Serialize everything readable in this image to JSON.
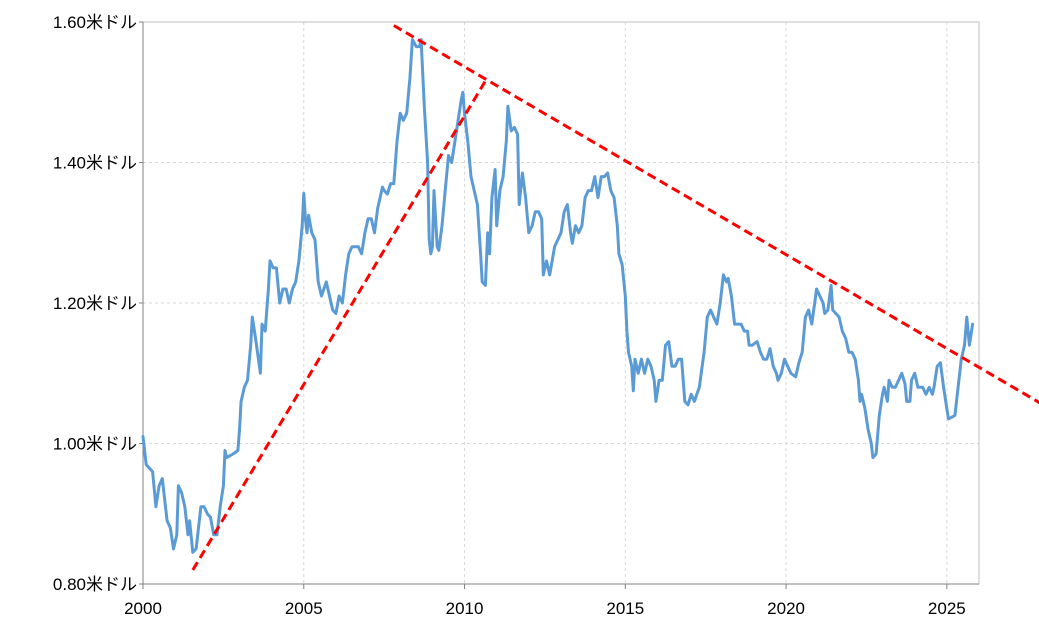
{
  "chart_data": {
    "type": "line",
    "title": "",
    "xlabel": "",
    "ylabel": "",
    "xlim": [
      2000,
      2026
    ],
    "ylim": [
      0.8,
      1.6
    ],
    "x_ticks": [
      2000,
      2005,
      2010,
      2015,
      2020,
      2025
    ],
    "x_tick_labels": [
      "2000",
      "2005",
      "2010",
      "2015",
      "2020",
      "2025"
    ],
    "y_ticks": [
      0.8,
      1.0,
      1.2,
      1.4,
      1.6
    ],
    "y_tick_labels": [
      "0.80米ドル",
      "1.00米ドル",
      "1.20米ドル",
      "1.40米ドル",
      "1.60米ドル"
    ],
    "grid": true,
    "series": [
      {
        "color": "#5b9bd5",
        "points": [
          [
            2000.0,
            1.01
          ],
          [
            2000.1,
            0.97
          ],
          [
            2000.3,
            0.96
          ],
          [
            2000.4,
            0.91
          ],
          [
            2000.5,
            0.94
          ],
          [
            2000.6,
            0.95
          ],
          [
            2000.75,
            0.89
          ],
          [
            2000.85,
            0.88
          ],
          [
            2000.95,
            0.85
          ],
          [
            2001.05,
            0.87
          ],
          [
            2001.1,
            0.94
          ],
          [
            2001.2,
            0.93
          ],
          [
            2001.3,
            0.91
          ],
          [
            2001.4,
            0.87
          ],
          [
            2001.45,
            0.89
          ],
          [
            2001.55,
            0.845
          ],
          [
            2001.65,
            0.85
          ],
          [
            2001.8,
            0.91
          ],
          [
            2001.9,
            0.91
          ],
          [
            2002.0,
            0.9
          ],
          [
            2002.1,
            0.895
          ],
          [
            2002.2,
            0.87
          ],
          [
            2002.3,
            0.87
          ],
          [
            2002.4,
            0.91
          ],
          [
            2002.5,
            0.94
          ],
          [
            2002.55,
            0.99
          ],
          [
            2002.6,
            0.98
          ],
          [
            2002.8,
            0.985
          ],
          [
            2002.95,
            0.99
          ],
          [
            2003.0,
            1.02
          ],
          [
            2003.05,
            1.06
          ],
          [
            2003.15,
            1.08
          ],
          [
            2003.25,
            1.09
          ],
          [
            2003.35,
            1.14
          ],
          [
            2003.4,
            1.18
          ],
          [
            2003.5,
            1.15
          ],
          [
            2003.65,
            1.1
          ],
          [
            2003.7,
            1.17
          ],
          [
            2003.8,
            1.16
          ],
          [
            2003.9,
            1.22
          ],
          [
            2003.95,
            1.26
          ],
          [
            2004.05,
            1.25
          ],
          [
            2004.15,
            1.25
          ],
          [
            2004.25,
            1.2
          ],
          [
            2004.35,
            1.22
          ],
          [
            2004.45,
            1.22
          ],
          [
            2004.55,
            1.2
          ],
          [
            2004.65,
            1.22
          ],
          [
            2004.75,
            1.23
          ],
          [
            2004.85,
            1.26
          ],
          [
            2004.95,
            1.31
          ],
          [
            2005.0,
            1.356
          ],
          [
            2005.05,
            1.32
          ],
          [
            2005.1,
            1.3
          ],
          [
            2005.15,
            1.325
          ],
          [
            2005.25,
            1.3
          ],
          [
            2005.35,
            1.29
          ],
          [
            2005.45,
            1.23
          ],
          [
            2005.55,
            1.21
          ],
          [
            2005.7,
            1.23
          ],
          [
            2005.8,
            1.21
          ],
          [
            2005.9,
            1.19
          ],
          [
            2006.0,
            1.185
          ],
          [
            2006.1,
            1.21
          ],
          [
            2006.2,
            1.2
          ],
          [
            2006.3,
            1.24
          ],
          [
            2006.4,
            1.27
          ],
          [
            2006.5,
            1.28
          ],
          [
            2006.6,
            1.28
          ],
          [
            2006.7,
            1.28
          ],
          [
            2006.8,
            1.27
          ],
          [
            2006.9,
            1.3
          ],
          [
            2007.0,
            1.32
          ],
          [
            2007.1,
            1.32
          ],
          [
            2007.2,
            1.3
          ],
          [
            2007.3,
            1.335
          ],
          [
            2007.4,
            1.355
          ],
          [
            2007.45,
            1.365
          ],
          [
            2007.5,
            1.36
          ],
          [
            2007.6,
            1.355
          ],
          [
            2007.7,
            1.37
          ],
          [
            2007.8,
            1.37
          ],
          [
            2007.9,
            1.43
          ],
          [
            2008.0,
            1.47
          ],
          [
            2008.1,
            1.46
          ],
          [
            2008.2,
            1.47
          ],
          [
            2008.3,
            1.52
          ],
          [
            2008.38,
            1.575
          ],
          [
            2008.5,
            1.565
          ],
          [
            2008.6,
            1.565
          ],
          [
            2008.65,
            1.575
          ],
          [
            2008.75,
            1.48
          ],
          [
            2008.85,
            1.4
          ],
          [
            2008.9,
            1.29
          ],
          [
            2008.95,
            1.27
          ],
          [
            2009.0,
            1.28
          ],
          [
            2009.05,
            1.36
          ],
          [
            2009.15,
            1.28
          ],
          [
            2009.2,
            1.275
          ],
          [
            2009.3,
            1.31
          ],
          [
            2009.4,
            1.36
          ],
          [
            2009.5,
            1.41
          ],
          [
            2009.6,
            1.4
          ],
          [
            2009.7,
            1.43
          ],
          [
            2009.8,
            1.46
          ],
          [
            2009.9,
            1.49
          ],
          [
            2009.95,
            1.5
          ],
          [
            2010.0,
            1.47
          ],
          [
            2010.1,
            1.43
          ],
          [
            2010.2,
            1.38
          ],
          [
            2010.3,
            1.36
          ],
          [
            2010.4,
            1.34
          ],
          [
            2010.5,
            1.27
          ],
          [
            2010.55,
            1.23
          ],
          [
            2010.65,
            1.225
          ],
          [
            2010.72,
            1.3
          ],
          [
            2010.78,
            1.27
          ],
          [
            2010.85,
            1.35
          ],
          [
            2010.95,
            1.39
          ],
          [
            2011.0,
            1.31
          ],
          [
            2011.1,
            1.36
          ],
          [
            2011.2,
            1.38
          ],
          [
            2011.3,
            1.43
          ],
          [
            2011.35,
            1.48
          ],
          [
            2011.45,
            1.445
          ],
          [
            2011.55,
            1.45
          ],
          [
            2011.65,
            1.44
          ],
          [
            2011.7,
            1.34
          ],
          [
            2011.8,
            1.385
          ],
          [
            2011.9,
            1.35
          ],
          [
            2012.0,
            1.3
          ],
          [
            2012.1,
            1.31
          ],
          [
            2012.2,
            1.33
          ],
          [
            2012.3,
            1.33
          ],
          [
            2012.4,
            1.32
          ],
          [
            2012.45,
            1.24
          ],
          [
            2012.55,
            1.26
          ],
          [
            2012.65,
            1.24
          ],
          [
            2012.8,
            1.28
          ],
          [
            2012.9,
            1.29
          ],
          [
            2013.0,
            1.3
          ],
          [
            2013.1,
            1.33
          ],
          [
            2013.2,
            1.34
          ],
          [
            2013.3,
            1.3
          ],
          [
            2013.35,
            1.285
          ],
          [
            2013.45,
            1.31
          ],
          [
            2013.55,
            1.3
          ],
          [
            2013.65,
            1.31
          ],
          [
            2013.75,
            1.35
          ],
          [
            2013.85,
            1.36
          ],
          [
            2013.95,
            1.36
          ],
          [
            2014.05,
            1.38
          ],
          [
            2014.15,
            1.35
          ],
          [
            2014.25,
            1.38
          ],
          [
            2014.35,
            1.38
          ],
          [
            2014.45,
            1.385
          ],
          [
            2014.55,
            1.36
          ],
          [
            2014.65,
            1.35
          ],
          [
            2014.75,
            1.31
          ],
          [
            2014.8,
            1.27
          ],
          [
            2014.9,
            1.255
          ],
          [
            2015.0,
            1.21
          ],
          [
            2015.05,
            1.16
          ],
          [
            2015.1,
            1.13
          ],
          [
            2015.2,
            1.11
          ],
          [
            2015.25,
            1.075
          ],
          [
            2015.3,
            1.12
          ],
          [
            2015.4,
            1.1
          ],
          [
            2015.5,
            1.12
          ],
          [
            2015.6,
            1.1
          ],
          [
            2015.7,
            1.12
          ],
          [
            2015.8,
            1.11
          ],
          [
            2015.9,
            1.09
          ],
          [
            2015.95,
            1.06
          ],
          [
            2016.05,
            1.09
          ],
          [
            2016.15,
            1.09
          ],
          [
            2016.25,
            1.14
          ],
          [
            2016.35,
            1.145
          ],
          [
            2016.45,
            1.11
          ],
          [
            2016.55,
            1.11
          ],
          [
            2016.65,
            1.12
          ],
          [
            2016.75,
            1.12
          ],
          [
            2016.85,
            1.06
          ],
          [
            2016.95,
            1.055
          ],
          [
            2017.05,
            1.07
          ],
          [
            2017.15,
            1.06
          ],
          [
            2017.3,
            1.08
          ],
          [
            2017.45,
            1.13
          ],
          [
            2017.55,
            1.18
          ],
          [
            2017.65,
            1.19
          ],
          [
            2017.75,
            1.18
          ],
          [
            2017.85,
            1.17
          ],
          [
            2017.95,
            1.2
          ],
          [
            2018.05,
            1.24
          ],
          [
            2018.15,
            1.23
          ],
          [
            2018.2,
            1.235
          ],
          [
            2018.3,
            1.21
          ],
          [
            2018.4,
            1.17
          ],
          [
            2018.6,
            1.17
          ],
          [
            2018.7,
            1.16
          ],
          [
            2018.8,
            1.16
          ],
          [
            2018.85,
            1.14
          ],
          [
            2018.95,
            1.14
          ],
          [
            2019.1,
            1.145
          ],
          [
            2019.2,
            1.13
          ],
          [
            2019.3,
            1.12
          ],
          [
            2019.4,
            1.12
          ],
          [
            2019.5,
            1.135
          ],
          [
            2019.6,
            1.11
          ],
          [
            2019.7,
            1.1
          ],
          [
            2019.75,
            1.09
          ],
          [
            2019.85,
            1.1
          ],
          [
            2019.95,
            1.12
          ],
          [
            2020.05,
            1.11
          ],
          [
            2020.15,
            1.1
          ],
          [
            2020.3,
            1.095
          ],
          [
            2020.4,
            1.115
          ],
          [
            2020.5,
            1.13
          ],
          [
            2020.6,
            1.18
          ],
          [
            2020.7,
            1.19
          ],
          [
            2020.8,
            1.17
          ],
          [
            2020.95,
            1.22
          ],
          [
            2021.05,
            1.21
          ],
          [
            2021.15,
            1.2
          ],
          [
            2021.2,
            1.185
          ],
          [
            2021.3,
            1.19
          ],
          [
            2021.4,
            1.225
          ],
          [
            2021.45,
            1.19
          ],
          [
            2021.55,
            1.185
          ],
          [
            2021.65,
            1.18
          ],
          [
            2021.75,
            1.16
          ],
          [
            2021.85,
            1.15
          ],
          [
            2021.95,
            1.13
          ],
          [
            2022.05,
            1.13
          ],
          [
            2022.15,
            1.12
          ],
          [
            2022.25,
            1.09
          ],
          [
            2022.3,
            1.06
          ],
          [
            2022.35,
            1.07
          ],
          [
            2022.45,
            1.05
          ],
          [
            2022.55,
            1.02
          ],
          [
            2022.65,
            1.0
          ],
          [
            2022.7,
            0.98
          ],
          [
            2022.8,
            0.985
          ],
          [
            2022.9,
            1.04
          ],
          [
            2023.0,
            1.07
          ],
          [
            2023.05,
            1.08
          ],
          [
            2023.15,
            1.06
          ],
          [
            2023.2,
            1.09
          ],
          [
            2023.3,
            1.08
          ],
          [
            2023.4,
            1.08
          ],
          [
            2023.5,
            1.09
          ],
          [
            2023.6,
            1.1
          ],
          [
            2023.7,
            1.085
          ],
          [
            2023.75,
            1.06
          ],
          [
            2023.85,
            1.06
          ],
          [
            2023.9,
            1.09
          ],
          [
            2024.0,
            1.1
          ],
          [
            2024.1,
            1.08
          ],
          [
            2024.25,
            1.08
          ],
          [
            2024.35,
            1.07
          ],
          [
            2024.45,
            1.08
          ],
          [
            2024.55,
            1.07
          ],
          [
            2024.6,
            1.08
          ],
          [
            2024.7,
            1.11
          ],
          [
            2024.8,
            1.115
          ],
          [
            2024.9,
            1.08
          ],
          [
            2025.0,
            1.05
          ],
          [
            2025.05,
            1.035
          ],
          [
            2025.25,
            1.04
          ],
          [
            2025.35,
            1.08
          ],
          [
            2025.45,
            1.12
          ],
          [
            2025.55,
            1.14
          ],
          [
            2025.62,
            1.18
          ],
          [
            2025.7,
            1.14
          ],
          [
            2025.8,
            1.17
          ]
        ]
      }
    ],
    "trendlines": [
      {
        "color": "#ff0000",
        "style": "dashed",
        "from": [
          2001.55,
          0.82
        ],
        "to": [
          2010.7,
          1.52
        ]
      },
      {
        "color": "#ff0000",
        "style": "dashed",
        "from": [
          2007.8,
          1.595
        ],
        "to": [
          2028.0,
          1.055
        ]
      }
    ]
  }
}
